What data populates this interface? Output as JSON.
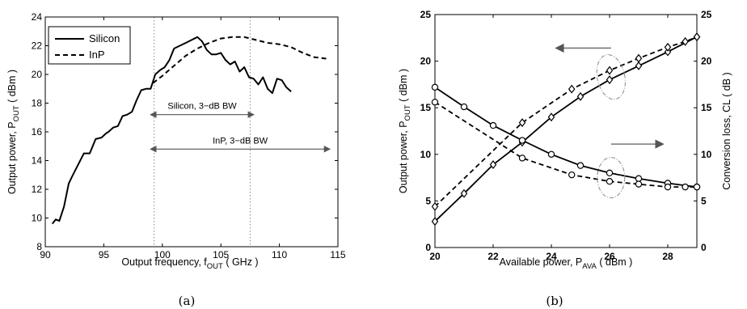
{
  "chart_data": [
    {
      "type": "line",
      "panel": "(a)",
      "xlabel": "Output frequency, f",
      "xlabel_sub": "OUT",
      "xlabel_unit": " ( GHz )",
      "ylabel": "Output power, P",
      "ylabel_sub": "OUT",
      "ylabel_unit": " ( dBm )",
      "xlim": [
        90,
        115
      ],
      "ylim": [
        8,
        24
      ],
      "xticks": [
        90,
        95,
        100,
        105,
        110,
        115
      ],
      "yticks": [
        8,
        10,
        12,
        14,
        16,
        18,
        20,
        22,
        24
      ],
      "grid": false,
      "legend_position": "top-left",
      "series": [
        {
          "name": "Silicon",
          "style": "solid",
          "x": [
            90.6,
            90.9,
            91.2,
            91.6,
            92.0,
            92.3,
            92.8,
            93.3,
            93.8,
            94.3,
            94.8,
            95.2,
            95.4,
            95.8,
            96.2,
            96.6,
            97.0,
            97.4,
            97.8,
            98.2,
            98.6,
            99.0,
            99.4,
            99.8,
            100.2,
            100.6,
            101.0,
            101.5,
            102.0,
            102.5,
            103.0,
            103.4,
            103.8,
            104.2,
            104.6,
            105.0,
            105.4,
            105.8,
            106.2,
            106.6,
            107.0,
            107.4,
            107.8,
            108.2,
            108.6,
            109.0,
            109.4,
            109.8,
            110.2,
            110.6,
            111.0
          ],
          "y": [
            9.6,
            9.9,
            9.8,
            10.8,
            12.4,
            12.9,
            13.7,
            14.5,
            14.5,
            15.5,
            15.6,
            15.9,
            16.0,
            16.3,
            16.4,
            17.1,
            17.2,
            17.4,
            18.2,
            18.9,
            19.0,
            19.0,
            20.0,
            20.3,
            20.5,
            21.0,
            21.8,
            22.0,
            22.2,
            22.4,
            22.6,
            22.3,
            21.7,
            21.4,
            21.4,
            21.5,
            21.0,
            20.7,
            20.9,
            20.2,
            20.5,
            19.8,
            19.7,
            19.3,
            19.8,
            19.0,
            18.7,
            19.7,
            19.6,
            19.1,
            18.8
          ]
        },
        {
          "name": "InP",
          "style": "dashed",
          "x": [
            99.2,
            100.0,
            101.0,
            102.0,
            103.0,
            104.0,
            105.0,
            106.0,
            107.0,
            108.0,
            109.0,
            110.0,
            111.0,
            112.0,
            113.0,
            114.0
          ],
          "y": [
            19.4,
            19.9,
            20.6,
            21.3,
            21.8,
            22.2,
            22.5,
            22.6,
            22.6,
            22.4,
            22.2,
            22.1,
            21.9,
            21.5,
            21.2,
            21.1
          ]
        }
      ],
      "annotations": [
        {
          "text": "Silicon, 3−dB BW",
          "x_from": 99.3,
          "x_to": 107.5,
          "y": 17.2
        },
        {
          "text": "InP, 3−dB BW",
          "x_from": 99.3,
          "x_to": 114.0,
          "y": 14.8
        }
      ],
      "reference_lines_x": [
        99.3,
        107.5
      ]
    },
    {
      "type": "line",
      "panel": "(b)",
      "xlabel": "Available power, P",
      "xlabel_sub": "AVA",
      "xlabel_unit": " ( dBm )",
      "ylabel": "Output power, P",
      "ylabel_sub": "OUT",
      "ylabel_unit": " ( dBm )",
      "ylabel_right": "Conversion loss, CL ( dB )",
      "xlim": [
        20,
        29
      ],
      "ylim": [
        0,
        25
      ],
      "ylim_right": [
        0,
        25
      ],
      "xticks": [
        20,
        22,
        24,
        26,
        28
      ],
      "yticks": [
        0,
        5,
        10,
        15,
        20,
        25
      ],
      "yticks_right": [
        0,
        5,
        10,
        15,
        20,
        25
      ],
      "grid": false,
      "series": [
        {
          "name": "",
          "axis": "left",
          "style": "solid",
          "marker": "diamond",
          "x": [
            20,
            21,
            22,
            23,
            24,
            25,
            26,
            27,
            28,
            29
          ],
          "y": [
            2.8,
            5.8,
            8.9,
            11.3,
            14.0,
            16.2,
            18.0,
            19.5,
            21.0,
            22.6
          ]
        },
        {
          "name": "",
          "axis": "left",
          "style": "dashed",
          "marker": "diamond",
          "x": [
            20,
            23,
            24.7,
            26,
            27,
            28,
            28.6,
            29
          ],
          "y": [
            4.4,
            13.4,
            17.0,
            19.0,
            20.3,
            21.5,
            22.1,
            22.6
          ]
        },
        {
          "name": "",
          "axis": "right",
          "style": "solid",
          "marker": "circle",
          "x": [
            20,
            21,
            22,
            23,
            24,
            25,
            26,
            27,
            28,
            29
          ],
          "y": [
            17.2,
            15.1,
            13.1,
            11.5,
            10.0,
            8.8,
            8.0,
            7.4,
            6.9,
            6.5
          ]
        },
        {
          "name": "",
          "axis": "right",
          "style": "dashed",
          "marker": "circle",
          "x": [
            20,
            23,
            24.7,
            26,
            27,
            28,
            28.6,
            29
          ],
          "y": [
            15.6,
            9.6,
            7.8,
            7.1,
            6.8,
            6.5,
            6.5,
            6.5
          ]
        }
      ]
    }
  ],
  "captions": {
    "a": "(a)",
    "b": "(b)"
  }
}
